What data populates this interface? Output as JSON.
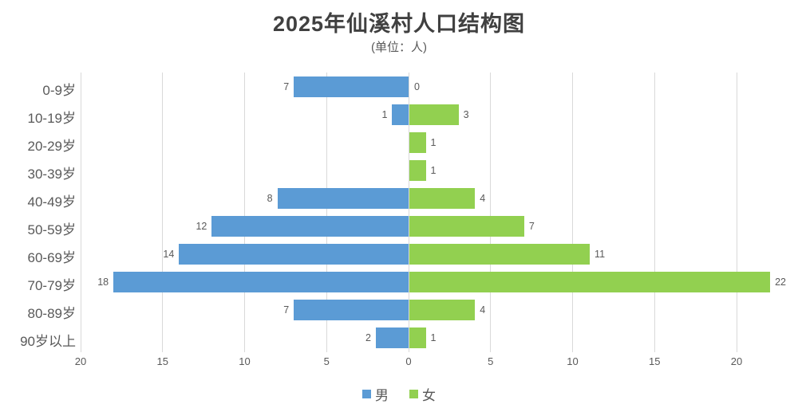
{
  "chart_data": {
    "type": "bar",
    "subtype": "population-pyramid",
    "title": "2025年仙溪村人口结构图",
    "subtitle": "(单位：人)",
    "categories": [
      "0-9岁",
      "10-19岁",
      "20-29岁",
      "30-39岁",
      "40-49岁",
      "50-59岁",
      "60-69岁",
      "70-79岁",
      "80-89岁",
      "90岁以上"
    ],
    "series": [
      {
        "name": "男",
        "color": "#5B9BD5",
        "direction": "left",
        "values": [
          7,
          1,
          null,
          null,
          8,
          12,
          14,
          18,
          7,
          2
        ]
      },
      {
        "name": "女",
        "color": "#92D050",
        "direction": "right",
        "values": [
          0,
          3,
          1,
          1,
          4,
          7,
          11,
          22,
          4,
          1
        ]
      }
    ],
    "x_tick_labels": [
      "20",
      "15",
      "10",
      "5",
      "0",
      "5",
      "10",
      "15",
      "20"
    ],
    "x_tick_units": [
      -20,
      -15,
      -10,
      -5,
      0,
      5,
      10,
      15,
      20
    ],
    "xlim": [
      -20,
      23
    ],
    "grid": "vertical-only",
    "legend_position": "bottom",
    "colors": {
      "male": "#5B9BD5",
      "female": "#92D050",
      "gridline": "#d9d9d9",
      "title_text": "#404040",
      "axis_text": "#595959",
      "value_text": "#595959"
    }
  }
}
